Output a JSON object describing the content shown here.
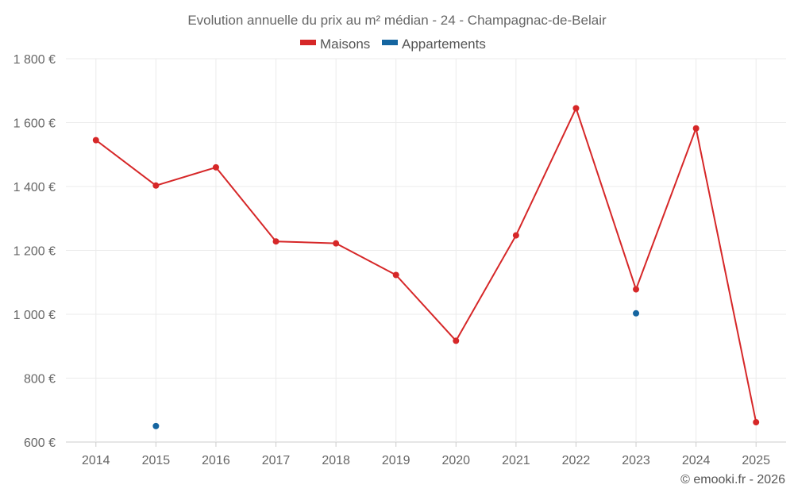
{
  "chart_data": {
    "type": "line",
    "title": "Evolution annuelle du prix au m² médian - 24 - Champagnac-de-Belair",
    "categories": [
      "2014",
      "2015",
      "2016",
      "2017",
      "2018",
      "2019",
      "2020",
      "2021",
      "2022",
      "2023",
      "2024",
      "2025"
    ],
    "ylim": [
      600,
      1800
    ],
    "yticks": [
      600,
      800,
      1000,
      1200,
      1400,
      1600,
      1800
    ],
    "ytick_labels": [
      "600 €",
      "800 €",
      "1 000 €",
      "1 200 €",
      "1 400 €",
      "1 600 €",
      "1 800 €"
    ],
    "grid": true,
    "legend_position": "top-center",
    "series": [
      {
        "name": "Maisons",
        "color": "#d62728",
        "line": true,
        "values": [
          1545,
          1403,
          1460,
          1228,
          1222,
          1123,
          917,
          1247,
          1645,
          1078,
          1582,
          662
        ]
      },
      {
        "name": "Appartements",
        "color": "#1565a0",
        "line": false,
        "values": [
          null,
          650,
          null,
          null,
          null,
          null,
          null,
          null,
          null,
          1003,
          null,
          null
        ]
      }
    ]
  },
  "credit": "© emooki.fr - 2026"
}
